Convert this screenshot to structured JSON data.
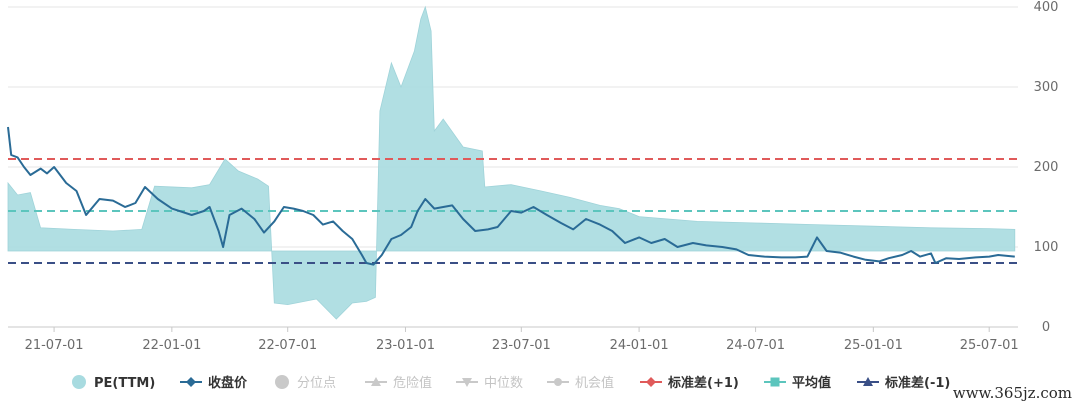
{
  "chart_data": {
    "type": "area",
    "x_tick_labels": [
      "21-07-01",
      "22-01-01",
      "22-07-01",
      "23-01-01",
      "23-07-01",
      "24-01-01",
      "24-07-01",
      "25-01-01",
      "25-07-01"
    ],
    "y_tick_labels": [
      "0",
      "100",
      "200",
      "300",
      "400"
    ],
    "ylim": [
      0,
      400
    ],
    "xlim": [
      "2021-04-20",
      "2025-08-15"
    ],
    "y_axis_position": "right",
    "grid": "horizontal",
    "legend_position": "bottom",
    "reference_lines": [
      {
        "name": "标准差(+1)",
        "value": 210,
        "color": "#e05a5a",
        "style": "dashed"
      },
      {
        "name": "平均值",
        "value": 145,
        "color": "#5cc5bd",
        "style": "dashed"
      },
      {
        "name": "标准差(-1)",
        "value": 80,
        "color": "#3a4f86",
        "style": "dashed"
      }
    ],
    "series": [
      {
        "name": "PE(TTM)",
        "kind": "area",
        "color": "#a8dbe0",
        "fill_base": 95,
        "points": [
          [
            "2021-04-20",
            180
          ],
          [
            "2021-05-05",
            165
          ],
          [
            "2021-05-25",
            168
          ],
          [
            "2021-06-10",
            124
          ],
          [
            "2021-08-01",
            122
          ],
          [
            "2021-10-01",
            120
          ],
          [
            "2021-11-15",
            122
          ],
          [
            "2021-12-05",
            176
          ],
          [
            "2022-02-01",
            174
          ],
          [
            "2022-03-01",
            178
          ],
          [
            "2022-03-25",
            210
          ],
          [
            "2022-04-15",
            195
          ],
          [
            "2022-05-15",
            185
          ],
          [
            "2022-06-01",
            176
          ],
          [
            "2022-06-10",
            30
          ],
          [
            "2022-07-01",
            28
          ],
          [
            "2022-08-15",
            35
          ],
          [
            "2022-09-15",
            10
          ],
          [
            "2022-10-10",
            30
          ],
          [
            "2022-11-01",
            32
          ],
          [
            "2022-11-15",
            37
          ],
          [
            "2022-11-22",
            270
          ],
          [
            "2022-12-10",
            330
          ],
          [
            "2022-12-25",
            300
          ],
          [
            "2023-01-15",
            345
          ],
          [
            "2023-01-25",
            385
          ],
          [
            "2023-02-01",
            400
          ],
          [
            "2023-02-10",
            370
          ],
          [
            "2023-02-15",
            245
          ],
          [
            "2023-03-01",
            260
          ],
          [
            "2023-04-01",
            225
          ],
          [
            "2023-05-01",
            220
          ],
          [
            "2023-05-05",
            175
          ],
          [
            "2023-06-15",
            178
          ],
          [
            "2023-08-01",
            170
          ],
          [
            "2023-09-15",
            162
          ],
          [
            "2023-11-01",
            152
          ],
          [
            "2023-12-01",
            148
          ],
          [
            "2024-01-01",
            138
          ],
          [
            "2024-04-01",
            132
          ],
          [
            "2024-07-01",
            130
          ],
          [
            "2024-10-01",
            128
          ],
          [
            "2025-01-01",
            126
          ],
          [
            "2025-04-01",
            124
          ],
          [
            "2025-07-01",
            123
          ],
          [
            "2025-08-10",
            122
          ]
        ]
      },
      {
        "name": "收盘价",
        "kind": "line",
        "color": "#2a6b96",
        "points": [
          [
            "2021-04-20",
            250
          ],
          [
            "2021-04-25",
            215
          ],
          [
            "2021-05-05",
            212
          ],
          [
            "2021-05-15",
            200
          ],
          [
            "2021-05-25",
            190
          ],
          [
            "2021-06-10",
            198
          ],
          [
            "2021-06-20",
            192
          ],
          [
            "2021-07-01",
            200
          ],
          [
            "2021-07-20",
            180
          ],
          [
            "2021-08-05",
            170
          ],
          [
            "2021-08-20",
            140
          ],
          [
            "2021-09-10",
            160
          ],
          [
            "2021-10-01",
            158
          ],
          [
            "2021-10-20",
            150
          ],
          [
            "2021-11-05",
            155
          ],
          [
            "2021-11-20",
            175
          ],
          [
            "2021-12-10",
            160
          ],
          [
            "2022-01-01",
            148
          ],
          [
            "2022-02-01",
            140
          ],
          [
            "2022-02-20",
            145
          ],
          [
            "2022-03-01",
            150
          ],
          [
            "2022-03-15",
            120
          ],
          [
            "2022-03-22",
            100
          ],
          [
            "2022-04-01",
            140
          ],
          [
            "2022-04-20",
            148
          ],
          [
            "2022-05-10",
            135
          ],
          [
            "2022-05-25",
            118
          ],
          [
            "2022-06-10",
            132
          ],
          [
            "2022-06-25",
            150
          ],
          [
            "2022-07-10",
            148
          ],
          [
            "2022-07-25",
            145
          ],
          [
            "2022-08-10",
            140
          ],
          [
            "2022-08-25",
            128
          ],
          [
            "2022-09-10",
            132
          ],
          [
            "2022-09-25",
            120
          ],
          [
            "2022-10-10",
            110
          ],
          [
            "2022-10-25",
            90
          ],
          [
            "2022-11-01",
            80
          ],
          [
            "2022-11-12",
            78
          ],
          [
            "2022-11-25",
            90
          ],
          [
            "2022-12-10",
            110
          ],
          [
            "2022-12-25",
            115
          ],
          [
            "2023-01-10",
            125
          ],
          [
            "2023-01-20",
            145
          ],
          [
            "2023-02-01",
            160
          ],
          [
            "2023-02-15",
            148
          ],
          [
            "2023-03-01",
            150
          ],
          [
            "2023-03-15",
            152
          ],
          [
            "2023-04-01",
            135
          ],
          [
            "2023-04-20",
            120
          ],
          [
            "2023-05-10",
            122
          ],
          [
            "2023-05-25",
            125
          ],
          [
            "2023-06-15",
            145
          ],
          [
            "2023-07-01",
            143
          ],
          [
            "2023-07-20",
            150
          ],
          [
            "2023-08-10",
            140
          ],
          [
            "2023-09-01",
            130
          ],
          [
            "2023-09-20",
            122
          ],
          [
            "2023-10-10",
            135
          ],
          [
            "2023-11-01",
            128
          ],
          [
            "2023-11-20",
            120
          ],
          [
            "2023-12-10",
            105
          ],
          [
            "2024-01-01",
            112
          ],
          [
            "2024-01-20",
            105
          ],
          [
            "2024-02-10",
            110
          ],
          [
            "2024-03-01",
            100
          ],
          [
            "2024-03-25",
            105
          ],
          [
            "2024-04-15",
            102
          ],
          [
            "2024-05-10",
            100
          ],
          [
            "2024-06-01",
            97
          ],
          [
            "2024-06-20",
            90
          ],
          [
            "2024-07-15",
            88
          ],
          [
            "2024-08-10",
            87
          ],
          [
            "2024-09-01",
            87
          ],
          [
            "2024-09-20",
            88
          ],
          [
            "2024-10-05",
            112
          ],
          [
            "2024-10-20",
            95
          ],
          [
            "2024-11-10",
            93
          ],
          [
            "2024-12-01",
            88
          ],
          [
            "2024-12-20",
            84
          ],
          [
            "2025-01-10",
            82
          ],
          [
            "2025-01-25",
            86
          ],
          [
            "2025-02-15",
            90
          ],
          [
            "2025-03-01",
            95
          ],
          [
            "2025-03-15",
            88
          ],
          [
            "2025-04-01",
            92
          ],
          [
            "2025-04-08",
            80
          ],
          [
            "2025-04-25",
            86
          ],
          [
            "2025-05-15",
            85
          ],
          [
            "2025-06-10",
            87
          ],
          [
            "2025-07-01",
            88
          ],
          [
            "2025-07-15",
            90
          ],
          [
            "2025-08-10",
            88
          ]
        ]
      }
    ],
    "legend": [
      {
        "label": "PE(TTM)",
        "marker": "circle",
        "color": "#a8dbe0",
        "active": true
      },
      {
        "label": "收盘价",
        "marker": "line-diamond",
        "color": "#2a6b96",
        "active": true
      },
      {
        "label": "分位点",
        "marker": "circle",
        "color": "#c9c9c9",
        "active": false
      },
      {
        "label": "危险值",
        "marker": "line-triangle-up",
        "color": "#c9c9c9",
        "active": false
      },
      {
        "label": "中位数",
        "marker": "line-triangle-down",
        "color": "#c9c9c9",
        "active": false
      },
      {
        "label": "机会值",
        "marker": "line-circle",
        "color": "#c9c9c9",
        "active": false
      },
      {
        "label": "标准差(+1)",
        "marker": "line-diamond",
        "color": "#e05a5a",
        "active": true
      },
      {
        "label": "平均值",
        "marker": "line-square",
        "color": "#5cc5bd",
        "active": true
      },
      {
        "label": "标准差(-1)",
        "marker": "line-triangle-up",
        "color": "#3a4f86",
        "active": true
      }
    ]
  },
  "watermark": "www.365jz.com"
}
